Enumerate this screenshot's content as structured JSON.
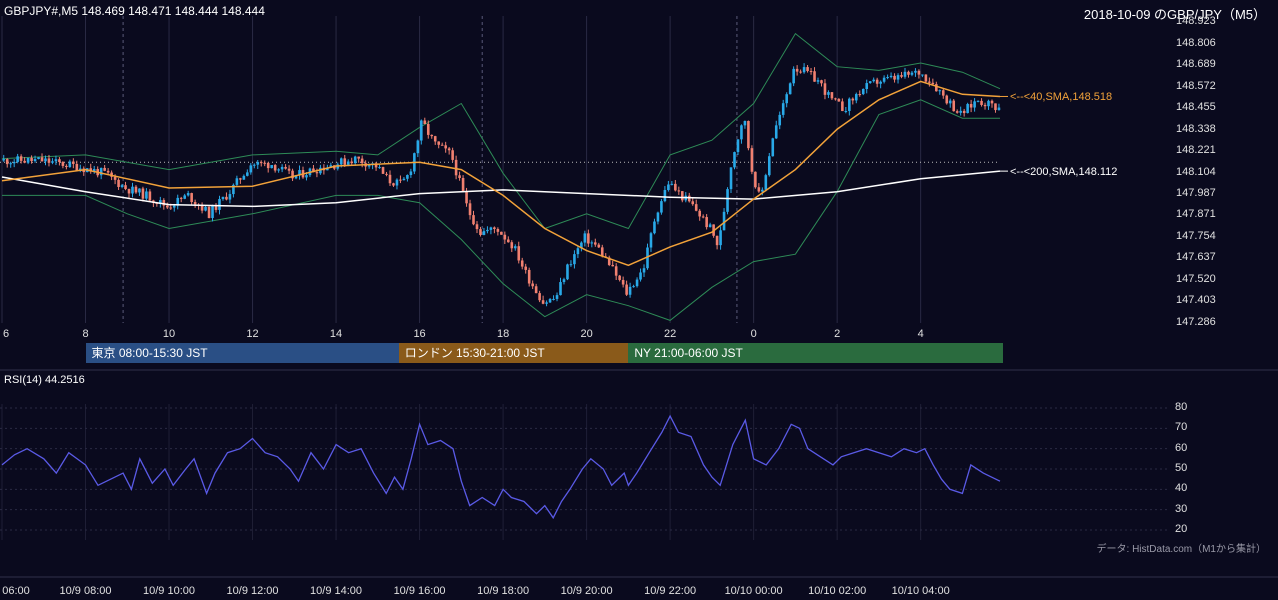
{
  "header": {
    "symbol_info": "GBPJPY#,M5 148.469 148.471 148.444 148.444",
    "chart_caption": "2018-10-09 のGBP/JPY（M5）"
  },
  "colors": {
    "background": "#0a0a1e",
    "bull": "#29a9e8",
    "bear": "#f08070",
    "sma40": "#f2a23a",
    "sma200": "#ffffff",
    "bands": "#2e8b57",
    "rsi": "#5a5ae6",
    "tokyo": "#2a4f85",
    "london": "#8a5a1a",
    "ny": "#2a6b3e"
  },
  "annotations": {
    "sma40": "<--<40,SMA,148.518",
    "sma200": "<--<200,SMA,148.112"
  },
  "sessions": [
    {
      "label": "東京 08:00-15:30 JST",
      "start_hour": 8,
      "end_hour": 15.5
    },
    {
      "label": "ロンドン 15:30-21:00 JST",
      "start_hour": 15.5,
      "end_hour": 21
    },
    {
      "label": "NY 21:00-06:00 JST",
      "start_hour": 21,
      "end_hour": 30
    }
  ],
  "rsi": {
    "label": "RSI(14) 44.2516"
  },
  "source_note": "データ: HistData.com（M1から集計）",
  "chart_data": [
    {
      "type": "candlestick",
      "title": "",
      "xlabel": "",
      "ylabel": "",
      "x_hour_range": [
        6,
        29.9
      ],
      "ylim": [
        147.286,
        148.923
      ],
      "y_ticks": [
        148.923,
        148.806,
        148.689,
        148.572,
        148.455,
        148.338,
        148.221,
        148.104,
        147.987,
        147.871,
        147.754,
        147.637,
        147.52,
        147.403,
        147.286
      ],
      "x_ticks": [
        {
          "hour": 6,
          "label": "6"
        },
        {
          "hour": 8,
          "label": "8"
        },
        {
          "hour": 10,
          "label": "10"
        },
        {
          "hour": 12,
          "label": "12"
        },
        {
          "hour": 14,
          "label": "14"
        },
        {
          "hour": 16,
          "label": "16"
        },
        {
          "hour": 18,
          "label": "18"
        },
        {
          "hour": 20,
          "label": "20"
        },
        {
          "hour": 22,
          "label": "22"
        },
        {
          "hour": 24,
          "label": "0"
        },
        {
          "hour": 26,
          "label": "2"
        },
        {
          "hour": 28,
          "label": "4"
        }
      ],
      "reference_level": 148.16,
      "price_path": [
        [
          6,
          148.17
        ],
        [
          7,
          148.17
        ],
        [
          7.8,
          148.14
        ],
        [
          8.5,
          148.1
        ],
        [
          9,
          148.02
        ],
        [
          9.5,
          147.98
        ],
        [
          10,
          147.92
        ],
        [
          10.5,
          147.98
        ],
        [
          11,
          147.88
        ],
        [
          11.5,
          148.0
        ],
        [
          12,
          148.15
        ],
        [
          12.5,
          148.15
        ],
        [
          13,
          148.08
        ],
        [
          13.5,
          148.12
        ],
        [
          14,
          148.15
        ],
        [
          14.5,
          148.18
        ],
        [
          15,
          148.14
        ],
        [
          15.3,
          148.06
        ],
        [
          15.6,
          148.04
        ],
        [
          15.8,
          148.1
        ],
        [
          16.1,
          148.38
        ],
        [
          16.4,
          148.26
        ],
        [
          16.8,
          148.2
        ],
        [
          17.2,
          147.9
        ],
        [
          17.5,
          147.78
        ],
        [
          17.9,
          147.8
        ],
        [
          18.3,
          147.7
        ],
        [
          18.6,
          147.55
        ],
        [
          19,
          147.4
        ],
        [
          19.3,
          147.42
        ],
        [
          19.6,
          147.6
        ],
        [
          20,
          147.75
        ],
        [
          20.3,
          147.7
        ],
        [
          20.6,
          147.6
        ],
        [
          21,
          147.45
        ],
        [
          21.4,
          147.58
        ],
        [
          21.7,
          147.88
        ],
        [
          22,
          148.05
        ],
        [
          22.3,
          147.98
        ],
        [
          22.6,
          147.92
        ],
        [
          23,
          147.8
        ],
        [
          23.2,
          147.7
        ],
        [
          23.5,
          148.15
        ],
        [
          23.8,
          148.42
        ],
        [
          24,
          148.12
        ],
        [
          24.2,
          147.95
        ],
        [
          24.5,
          148.3
        ],
        [
          24.8,
          148.5
        ],
        [
          25,
          148.68
        ],
        [
          25.3,
          148.65
        ],
        [
          25.6,
          148.6
        ],
        [
          25.9,
          148.5
        ],
        [
          26.2,
          148.45
        ],
        [
          26.6,
          148.55
        ],
        [
          27,
          148.6
        ],
        [
          27.5,
          148.62
        ],
        [
          28,
          148.65
        ],
        [
          28.3,
          148.6
        ],
        [
          28.6,
          148.52
        ],
        [
          29,
          148.42
        ],
        [
          29.4,
          148.5
        ],
        [
          29.9,
          148.46
        ]
      ],
      "series": [
        {
          "name": "40,SMA",
          "points": [
            [
              6,
              148.06
            ],
            [
              8,
              148.12
            ],
            [
              10,
              148.02
            ],
            [
              12,
              148.03
            ],
            [
              14,
              148.14
            ],
            [
              16,
              148.16
            ],
            [
              17,
              148.12
            ],
            [
              18,
              147.98
            ],
            [
              19,
              147.8
            ],
            [
              20,
              147.68
            ],
            [
              21,
              147.6
            ],
            [
              22,
              147.7
            ],
            [
              23,
              147.78
            ],
            [
              24,
              147.96
            ],
            [
              25,
              148.12
            ],
            [
              26,
              148.34
            ],
            [
              27,
              148.5
            ],
            [
              28,
              148.6
            ],
            [
              29,
              148.53
            ],
            [
              29.9,
              148.518
            ]
          ]
        },
        {
          "name": "200,SMA",
          "points": [
            [
              6,
              148.08
            ],
            [
              8,
              148.0
            ],
            [
              10,
              147.93
            ],
            [
              12,
              147.92
            ],
            [
              14,
              147.94
            ],
            [
              16,
              147.99
            ],
            [
              18,
              148.01
            ],
            [
              20,
              147.99
            ],
            [
              22,
              147.97
            ],
            [
              24,
              147.96
            ],
            [
              26,
              148.0
            ],
            [
              28,
              148.07
            ],
            [
              29.9,
              148.112
            ]
          ]
        },
        {
          "name": "upper_band",
          "points": [
            [
              6,
              148.18
            ],
            [
              8,
              148.2
            ],
            [
              10,
              148.12
            ],
            [
              12,
              148.2
            ],
            [
              14,
              148.22
            ],
            [
              15,
              148.2
            ],
            [
              16,
              148.35
            ],
            [
              17,
              148.48
            ],
            [
              18,
              148.1
            ],
            [
              19,
              147.8
            ],
            [
              20,
              147.88
            ],
            [
              21,
              147.8
            ],
            [
              22,
              148.2
            ],
            [
              23,
              148.28
            ],
            [
              24,
              148.48
            ],
            [
              25,
              148.86
            ],
            [
              26,
              148.68
            ],
            [
              27,
              148.66
            ],
            [
              28,
              148.7
            ],
            [
              29,
              148.65
            ],
            [
              29.9,
              148.56
            ]
          ]
        },
        {
          "name": "lower_band",
          "points": [
            [
              6,
              147.98
            ],
            [
              8,
              147.98
            ],
            [
              9,
              147.88
            ],
            [
              10,
              147.8
            ],
            [
              12,
              147.88
            ],
            [
              14,
              147.98
            ],
            [
              15,
              147.98
            ],
            [
              16,
              147.94
            ],
            [
              17,
              147.74
            ],
            [
              18,
              147.5
            ],
            [
              19,
              147.32
            ],
            [
              20,
              147.44
            ],
            [
              21,
              147.38
            ],
            [
              22,
              147.3
            ],
            [
              23,
              147.48
            ],
            [
              24,
              147.62
            ],
            [
              25,
              147.66
            ],
            [
              26,
              148.0
            ],
            [
              27,
              148.42
            ],
            [
              28,
              148.5
            ],
            [
              29,
              148.4
            ],
            [
              29.9,
              148.4
            ]
          ]
        }
      ]
    },
    {
      "type": "line",
      "title": "",
      "xlabel": "",
      "ylabel": "",
      "ylim": [
        20,
        80
      ],
      "y_ticks": [
        80,
        70,
        60,
        50,
        40,
        30,
        20
      ],
      "x_ticks": [
        {
          "hour": 6,
          "label": "06:00"
        },
        {
          "hour": 8,
          "label": "10/9 08:00"
        },
        {
          "hour": 10,
          "label": "10/9 10:00"
        },
        {
          "hour": 12,
          "label": "10/9 12:00"
        },
        {
          "hour": 14,
          "label": "10/9 14:00"
        },
        {
          "hour": 16,
          "label": "10/9 16:00"
        },
        {
          "hour": 18,
          "label": "10/9 18:00"
        },
        {
          "hour": 20,
          "label": "10/9 20:00"
        },
        {
          "hour": 22,
          "label": "10/9 22:00"
        },
        {
          "hour": 24,
          "label": "10/10 00:00"
        },
        {
          "hour": 26,
          "label": "10/10 02:00"
        },
        {
          "hour": 28,
          "label": "10/10 04:00"
        }
      ],
      "series": [
        {
          "name": "RSI(14)",
          "points": [
            [
              6,
              52
            ],
            [
              6.3,
              57
            ],
            [
              6.6,
              60
            ],
            [
              7,
              55
            ],
            [
              7.3,
              48
            ],
            [
              7.6,
              58
            ],
            [
              8,
              52
            ],
            [
              8.3,
              42
            ],
            [
              8.6,
              45
            ],
            [
              8.9,
              48
            ],
            [
              9.1,
              40
            ],
            [
              9.3,
              55
            ],
            [
              9.6,
              43
            ],
            [
              9.9,
              50
            ],
            [
              10.1,
              42
            ],
            [
              10.4,
              50
            ],
            [
              10.6,
              55
            ],
            [
              10.9,
              38
            ],
            [
              11.1,
              48
            ],
            [
              11.4,
              58
            ],
            [
              11.7,
              60
            ],
            [
              12,
              65
            ],
            [
              12.3,
              58
            ],
            [
              12.6,
              56
            ],
            [
              12.9,
              50
            ],
            [
              13.1,
              44
            ],
            [
              13.4,
              58
            ],
            [
              13.7,
              50
            ],
            [
              14,
              62
            ],
            [
              14.3,
              58
            ],
            [
              14.6,
              60
            ],
            [
              14.9,
              48
            ],
            [
              15.2,
              38
            ],
            [
              15.4,
              46
            ],
            [
              15.6,
              40
            ],
            [
              15.8,
              55
            ],
            [
              16,
              72
            ],
            [
              16.2,
              62
            ],
            [
              16.5,
              64
            ],
            [
              16.8,
              60
            ],
            [
              17,
              44
            ],
            [
              17.2,
              32
            ],
            [
              17.5,
              36
            ],
            [
              17.8,
              32
            ],
            [
              18,
              40
            ],
            [
              18.2,
              36
            ],
            [
              18.5,
              34
            ],
            [
              18.8,
              28
            ],
            [
              19,
              32
            ],
            [
              19.2,
              26
            ],
            [
              19.4,
              34
            ],
            [
              19.6,
              40
            ],
            [
              19.9,
              50
            ],
            [
              20.1,
              55
            ],
            [
              20.4,
              50
            ],
            [
              20.6,
              42
            ],
            [
              20.9,
              48
            ],
            [
              21,
              42
            ],
            [
              21.2,
              48
            ],
            [
              21.5,
              58
            ],
            [
              21.8,
              68
            ],
            [
              22,
              76
            ],
            [
              22.2,
              68
            ],
            [
              22.5,
              66
            ],
            [
              22.8,
              52
            ],
            [
              23,
              46
            ],
            [
              23.2,
              42
            ],
            [
              23.5,
              62
            ],
            [
              23.8,
              74
            ],
            [
              24,
              55
            ],
            [
              24.3,
              52
            ],
            [
              24.6,
              60
            ],
            [
              24.9,
              72
            ],
            [
              25.1,
              70
            ],
            [
              25.3,
              60
            ],
            [
              25.6,
              56
            ],
            [
              25.9,
              52
            ],
            [
              26.1,
              56
            ],
            [
              26.4,
              58
            ],
            [
              26.7,
              60
            ],
            [
              27,
              58
            ],
            [
              27.3,
              56
            ],
            [
              27.6,
              60
            ],
            [
              27.9,
              58
            ],
            [
              28.1,
              60
            ],
            [
              28.3,
              52
            ],
            [
              28.5,
              45
            ],
            [
              28.7,
              40
            ],
            [
              29,
              38
            ],
            [
              29.2,
              52
            ],
            [
              29.5,
              48
            ],
            [
              29.9,
              44
            ]
          ]
        }
      ]
    }
  ]
}
